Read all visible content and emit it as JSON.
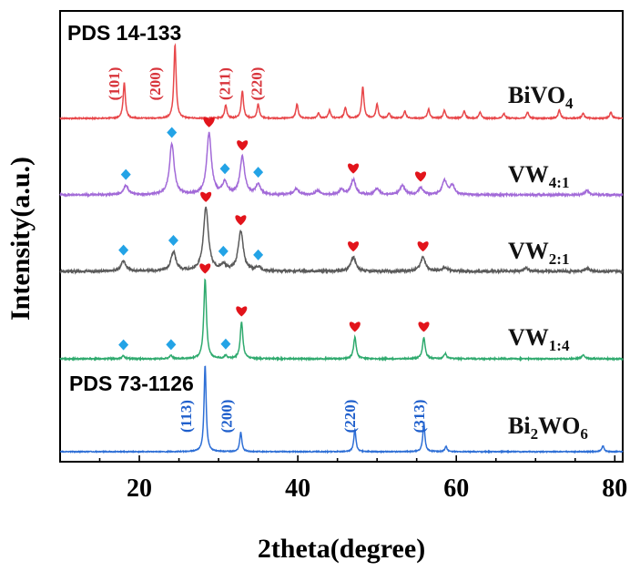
{
  "chart_data": {
    "type": "line",
    "xlabel": "2theta(degree)",
    "ylabel": "Intensity(a.u.)",
    "xlim": [
      10,
      81
    ],
    "x_ticks": [
      "20",
      "40",
      "60",
      "80"
    ],
    "y_ticks_shown": false,
    "colors": {
      "bivo4": "#e8474a",
      "vw41": "#a26ad8",
      "vw21": "#5a5a5a",
      "vw14": "#2faa6e",
      "bi2wo6": "#2e6fd6",
      "heart": "#e2141b",
      "diamond": "#23a3e6",
      "hkl_red": "#d8343b",
      "hkl_blue": "#1f5fcc"
    },
    "pds_labels": [
      {
        "text": "PDS 14-133"
      },
      {
        "text": "PDS 73-1126"
      }
    ],
    "series": [
      {
        "key": "bivo4",
        "name": "BiVO",
        "sub": "4",
        "label_position": "right-top",
        "peaks": [
          {
            "x": 18.1,
            "h": 0.35
          },
          {
            "x": 24.5,
            "h": 0.72
          },
          {
            "x": 30.9,
            "h": 0.13
          },
          {
            "x": 33.0,
            "h": 0.27
          },
          {
            "x": 35.0,
            "h": 0.14
          },
          {
            "x": 39.9,
            "h": 0.14
          },
          {
            "x": 42.6,
            "h": 0.05
          },
          {
            "x": 44.0,
            "h": 0.08
          },
          {
            "x": 46.0,
            "h": 0.11
          },
          {
            "x": 48.2,
            "h": 0.31
          },
          {
            "x": 50.0,
            "h": 0.14
          },
          {
            "x": 51.5,
            "h": 0.05
          },
          {
            "x": 53.5,
            "h": 0.07
          },
          {
            "x": 56.5,
            "h": 0.09
          },
          {
            "x": 58.5,
            "h": 0.08
          },
          {
            "x": 61.0,
            "h": 0.07
          },
          {
            "x": 63.0,
            "h": 0.06
          },
          {
            "x": 66.0,
            "h": 0.05
          },
          {
            "x": 69.0,
            "h": 0.06
          },
          {
            "x": 73.0,
            "h": 0.08
          },
          {
            "x": 76.0,
            "h": 0.05
          },
          {
            "x": 79.5,
            "h": 0.06
          }
        ]
      },
      {
        "key": "vw41",
        "name": "VW",
        "sub": "4:1",
        "peaks": [
          {
            "x": 18.3,
            "h": 0.09
          },
          {
            "x": 24.1,
            "h": 0.5
          },
          {
            "x": 28.8,
            "h": 0.6
          },
          {
            "x": 30.8,
            "h": 0.12
          },
          {
            "x": 33.0,
            "h": 0.37
          },
          {
            "x": 35.0,
            "h": 0.1
          },
          {
            "x": 39.8,
            "h": 0.06
          },
          {
            "x": 42.5,
            "h": 0.04
          },
          {
            "x": 45.5,
            "h": 0.05
          },
          {
            "x": 47.0,
            "h": 0.15
          },
          {
            "x": 50.0,
            "h": 0.06
          },
          {
            "x": 53.2,
            "h": 0.09
          },
          {
            "x": 55.5,
            "h": 0.07
          },
          {
            "x": 58.5,
            "h": 0.14
          },
          {
            "x": 59.5,
            "h": 0.09
          },
          {
            "x": 76.5,
            "h": 0.04
          }
        ]
      },
      {
        "key": "vw21",
        "name": "VW",
        "sub": "2:1",
        "peaks": [
          {
            "x": 18.0,
            "h": 0.1
          },
          {
            "x": 24.3,
            "h": 0.19
          },
          {
            "x": 28.4,
            "h": 0.62
          },
          {
            "x": 30.6,
            "h": 0.06
          },
          {
            "x": 32.8,
            "h": 0.39
          },
          {
            "x": 35.0,
            "h": 0.04
          },
          {
            "x": 47.0,
            "h": 0.14
          },
          {
            "x": 55.8,
            "h": 0.14
          },
          {
            "x": 58.6,
            "h": 0.04
          },
          {
            "x": 68.8,
            "h": 0.03
          },
          {
            "x": 76.5,
            "h": 0.03
          }
        ]
      },
      {
        "key": "vw14",
        "name": "VW",
        "sub": "1:4",
        "peaks": [
          {
            "x": 18.0,
            "h": 0.03
          },
          {
            "x": 24.0,
            "h": 0.03
          },
          {
            "x": 28.3,
            "h": 0.78
          },
          {
            "x": 30.9,
            "h": 0.03
          },
          {
            "x": 32.9,
            "h": 0.36
          },
          {
            "x": 47.2,
            "h": 0.21
          },
          {
            "x": 55.9,
            "h": 0.21
          },
          {
            "x": 58.6,
            "h": 0.05
          },
          {
            "x": 76.0,
            "h": 0.04
          }
        ]
      },
      {
        "key": "bi2wo6",
        "name_parts": [
          "Bi",
          "2",
          "WO",
          "6"
        ],
        "label_position": "right-bottom",
        "peaks": [
          {
            "x": 28.3,
            "h": 0.85
          },
          {
            "x": 32.8,
            "h": 0.19
          },
          {
            "x": 47.2,
            "h": 0.22
          },
          {
            "x": 55.9,
            "h": 0.28
          },
          {
            "x": 58.7,
            "h": 0.05
          },
          {
            "x": 78.5,
            "h": 0.06
          }
        ]
      }
    ],
    "hkl_labels": [
      {
        "series": "bivo4",
        "text": "(101)",
        "x": 17.0,
        "color": "hkl_red"
      },
      {
        "series": "bivo4",
        "text": "(200)",
        "x": 22.2,
        "color": "hkl_red"
      },
      {
        "series": "bivo4",
        "text": "(211)",
        "x": 31.0,
        "color": "hkl_red"
      },
      {
        "series": "bivo4",
        "text": "(220)",
        "x": 35.0,
        "color": "hkl_red"
      },
      {
        "series": "bi2wo6",
        "text": "(113)",
        "x": 26.1,
        "color": "hkl_blue"
      },
      {
        "series": "bi2wo6",
        "text": "(200)",
        "x": 31.2,
        "color": "hkl_blue"
      },
      {
        "series": "bi2wo6",
        "text": "(220)",
        "x": 46.8,
        "color": "hkl_blue"
      },
      {
        "series": "bi2wo6",
        "text": "(313)",
        "x": 55.5,
        "color": "hkl_blue"
      }
    ],
    "markers": [
      {
        "series": "vw41",
        "shape": "diamond",
        "x": 18.3
      },
      {
        "series": "vw41",
        "shape": "diamond",
        "x": 24.1
      },
      {
        "series": "vw41",
        "shape": "heart",
        "x": 28.8
      },
      {
        "series": "vw41",
        "shape": "diamond",
        "x": 30.8
      },
      {
        "series": "vw41",
        "shape": "heart",
        "x": 33.0
      },
      {
        "series": "vw41",
        "shape": "diamond",
        "x": 35.0
      },
      {
        "series": "vw41",
        "shape": "heart",
        "x": 47.0
      },
      {
        "series": "vw41",
        "shape": "heart",
        "x": 55.5
      },
      {
        "series": "vw21",
        "shape": "diamond",
        "x": 18.0
      },
      {
        "series": "vw21",
        "shape": "diamond",
        "x": 24.3
      },
      {
        "series": "vw21",
        "shape": "heart",
        "x": 28.4
      },
      {
        "series": "vw21",
        "shape": "diamond",
        "x": 30.6
      },
      {
        "series": "vw21",
        "shape": "heart",
        "x": 32.8
      },
      {
        "series": "vw21",
        "shape": "diamond",
        "x": 35.0
      },
      {
        "series": "vw21",
        "shape": "heart",
        "x": 47.0
      },
      {
        "series": "vw21",
        "shape": "heart",
        "x": 55.8
      },
      {
        "series": "vw14",
        "shape": "diamond",
        "x": 18.0
      },
      {
        "series": "vw14",
        "shape": "diamond",
        "x": 24.0
      },
      {
        "series": "vw14",
        "shape": "heart",
        "x": 28.3
      },
      {
        "series": "vw14",
        "shape": "diamond",
        "x": 30.9
      },
      {
        "series": "vw14",
        "shape": "heart",
        "x": 32.9
      },
      {
        "series": "vw14",
        "shape": "heart",
        "x": 47.2
      },
      {
        "series": "vw14",
        "shape": "heart",
        "x": 55.9
      }
    ]
  }
}
